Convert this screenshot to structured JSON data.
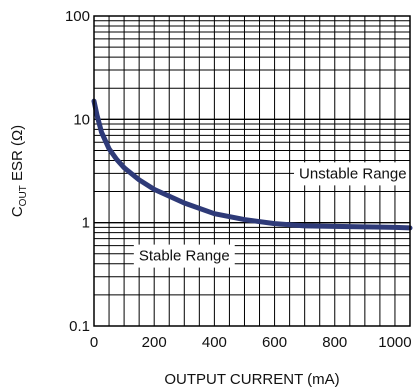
{
  "chart_data": {
    "type": "line",
    "xlabel": "OUTPUT CURRENT (mA)",
    "ylabel_main": "C",
    "ylabel_sub": "OUT",
    "ylabel_rest": " ESR (Ω)",
    "xlim": [
      0,
      1050
    ],
    "ylim": [
      0.1,
      100
    ],
    "y_scale": "log",
    "grid": true,
    "x_ticks": [
      0,
      200,
      400,
      600,
      800,
      1000
    ],
    "x_tick_labels": [
      "0",
      "200",
      "400",
      "600",
      "800",
      "1000"
    ],
    "y_ticks": [
      0.1,
      1,
      10,
      100
    ],
    "y_tick_labels": [
      "0.1",
      "1",
      "10",
      "100"
    ],
    "series": [
      {
        "color": "#2e3a78",
        "x": [
          0,
          10,
          25,
          50,
          75,
          100,
          150,
          200,
          300,
          400,
          500,
          600,
          700,
          800,
          900,
          1000,
          1050
        ],
        "y": [
          15,
          11,
          7.5,
          5.2,
          4.1,
          3.4,
          2.6,
          2.1,
          1.55,
          1.22,
          1.07,
          0.98,
          0.93,
          0.92,
          0.91,
          0.9,
          0.89
        ]
      }
    ],
    "annotations": [
      {
        "text": "Unstable Range",
        "x": 860,
        "y": 3.0
      },
      {
        "text": "Stable Range",
        "x": 300,
        "y": 0.48
      }
    ]
  }
}
